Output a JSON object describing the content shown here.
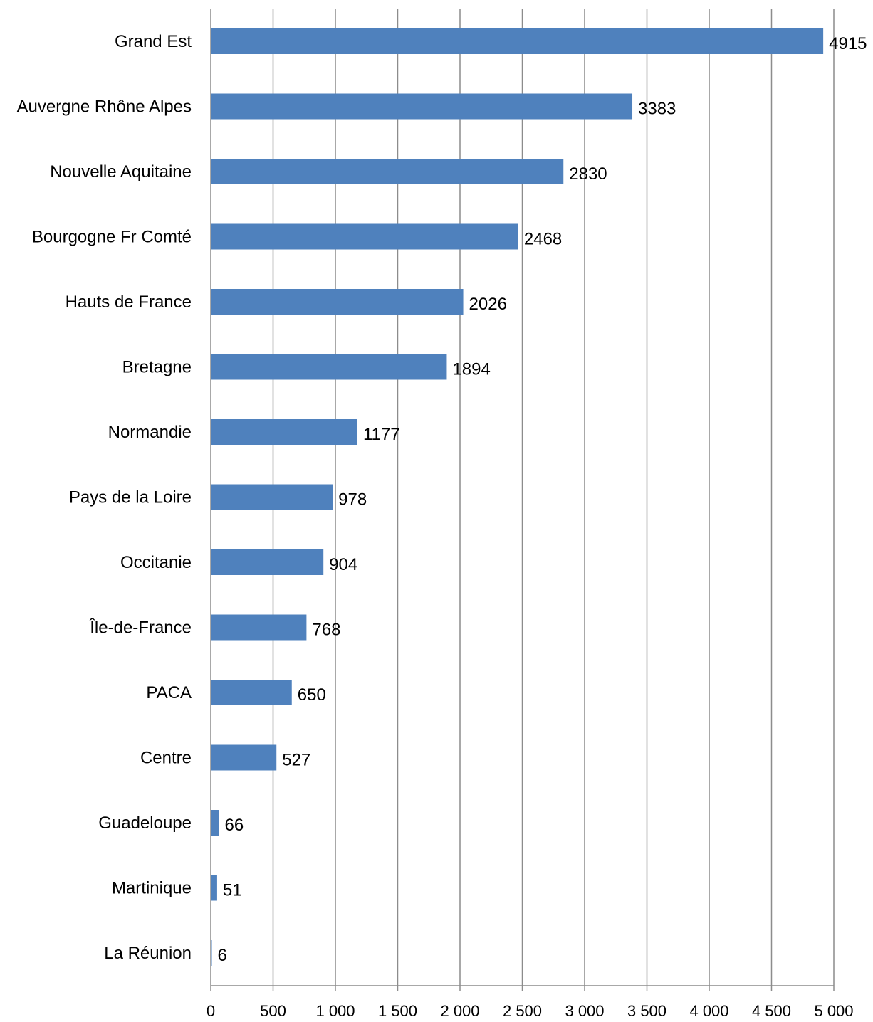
{
  "chart_data": {
    "type": "bar",
    "orientation": "horizontal",
    "categories": [
      "Grand Est",
      "Auvergne Rhône Alpes",
      "Nouvelle Aquitaine",
      "Bourgogne Fr Comté",
      "Hauts de France",
      "Bretagne",
      "Normandie",
      "Pays de la Loire",
      "Occitanie",
      "Île-de-France",
      "PACA",
      "Centre",
      "Guadeloupe",
      "Martinique",
      "La Réunion"
    ],
    "values": [
      4915,
      3383,
      2830,
      2468,
      2026,
      1894,
      1177,
      978,
      904,
      768,
      650,
      527,
      66,
      51,
      6
    ],
    "data_labels": [
      "4915",
      "3383",
      "2830",
      "2468",
      "2026",
      "1894",
      "1177",
      "978",
      "904",
      "768",
      "650",
      "527",
      "66",
      "51",
      "6"
    ],
    "xlim": [
      0,
      5000
    ],
    "x_ticks": [
      0,
      500,
      1000,
      1500,
      2000,
      2500,
      3000,
      3500,
      4000,
      4500,
      5000
    ],
    "x_tick_labels": [
      "0",
      "500",
      "1 000",
      "1 500",
      "2 000",
      "2 500",
      "3 000",
      "3 500",
      "4 000",
      "4 500",
      "5 000"
    ],
    "gridlines": "vertical",
    "legend": "none",
    "colors": {
      "bar": "#4f81bd",
      "grid": "#8c8c8c",
      "axis": "#8c8c8c",
      "text": "#000000"
    }
  }
}
